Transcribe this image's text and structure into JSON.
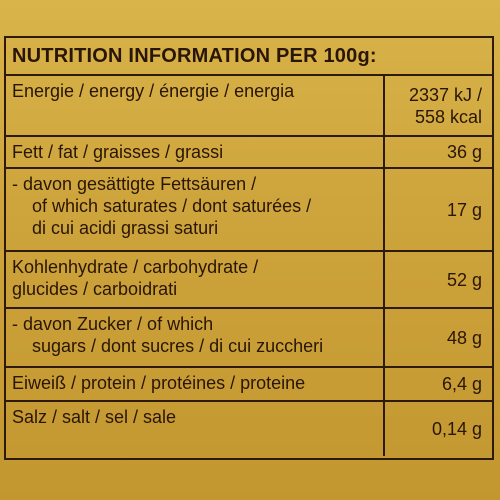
{
  "title": "NUTRITION INFORMATION PER 100g:",
  "rows": [
    {
      "label_lines": [
        "Energie / energy / énergie / energia"
      ],
      "value_lines": [
        "2337 kJ /",
        "558 kcal"
      ]
    },
    {
      "label_lines": [
        "Fett / fat / graisses / grassi"
      ],
      "value_lines": [
        "36 g"
      ]
    },
    {
      "label_lines": [
        "- davon gesättigte Fettsäuren /",
        "of which saturates / dont saturées /",
        "di cui acidi grassi saturi"
      ],
      "value_lines": [
        "17 g"
      ]
    },
    {
      "label_lines": [
        "Kohlenhydrate / carbohydrate /",
        "glucides / carboidrati"
      ],
      "value_lines": [
        "52 g"
      ]
    },
    {
      "label_lines": [
        "- davon Zucker / of which",
        "sugars / dont sucres / di cui zuccheri"
      ],
      "value_lines": [
        "48 g"
      ]
    },
    {
      "label_lines": [
        "Eiweiß / protein / protéines / proteine"
      ],
      "value_lines": [
        "6,4 g"
      ]
    },
    {
      "label_lines": [
        "Salz / salt / sel / sale"
      ],
      "value_lines": [
        "0,14 g"
      ]
    }
  ]
}
